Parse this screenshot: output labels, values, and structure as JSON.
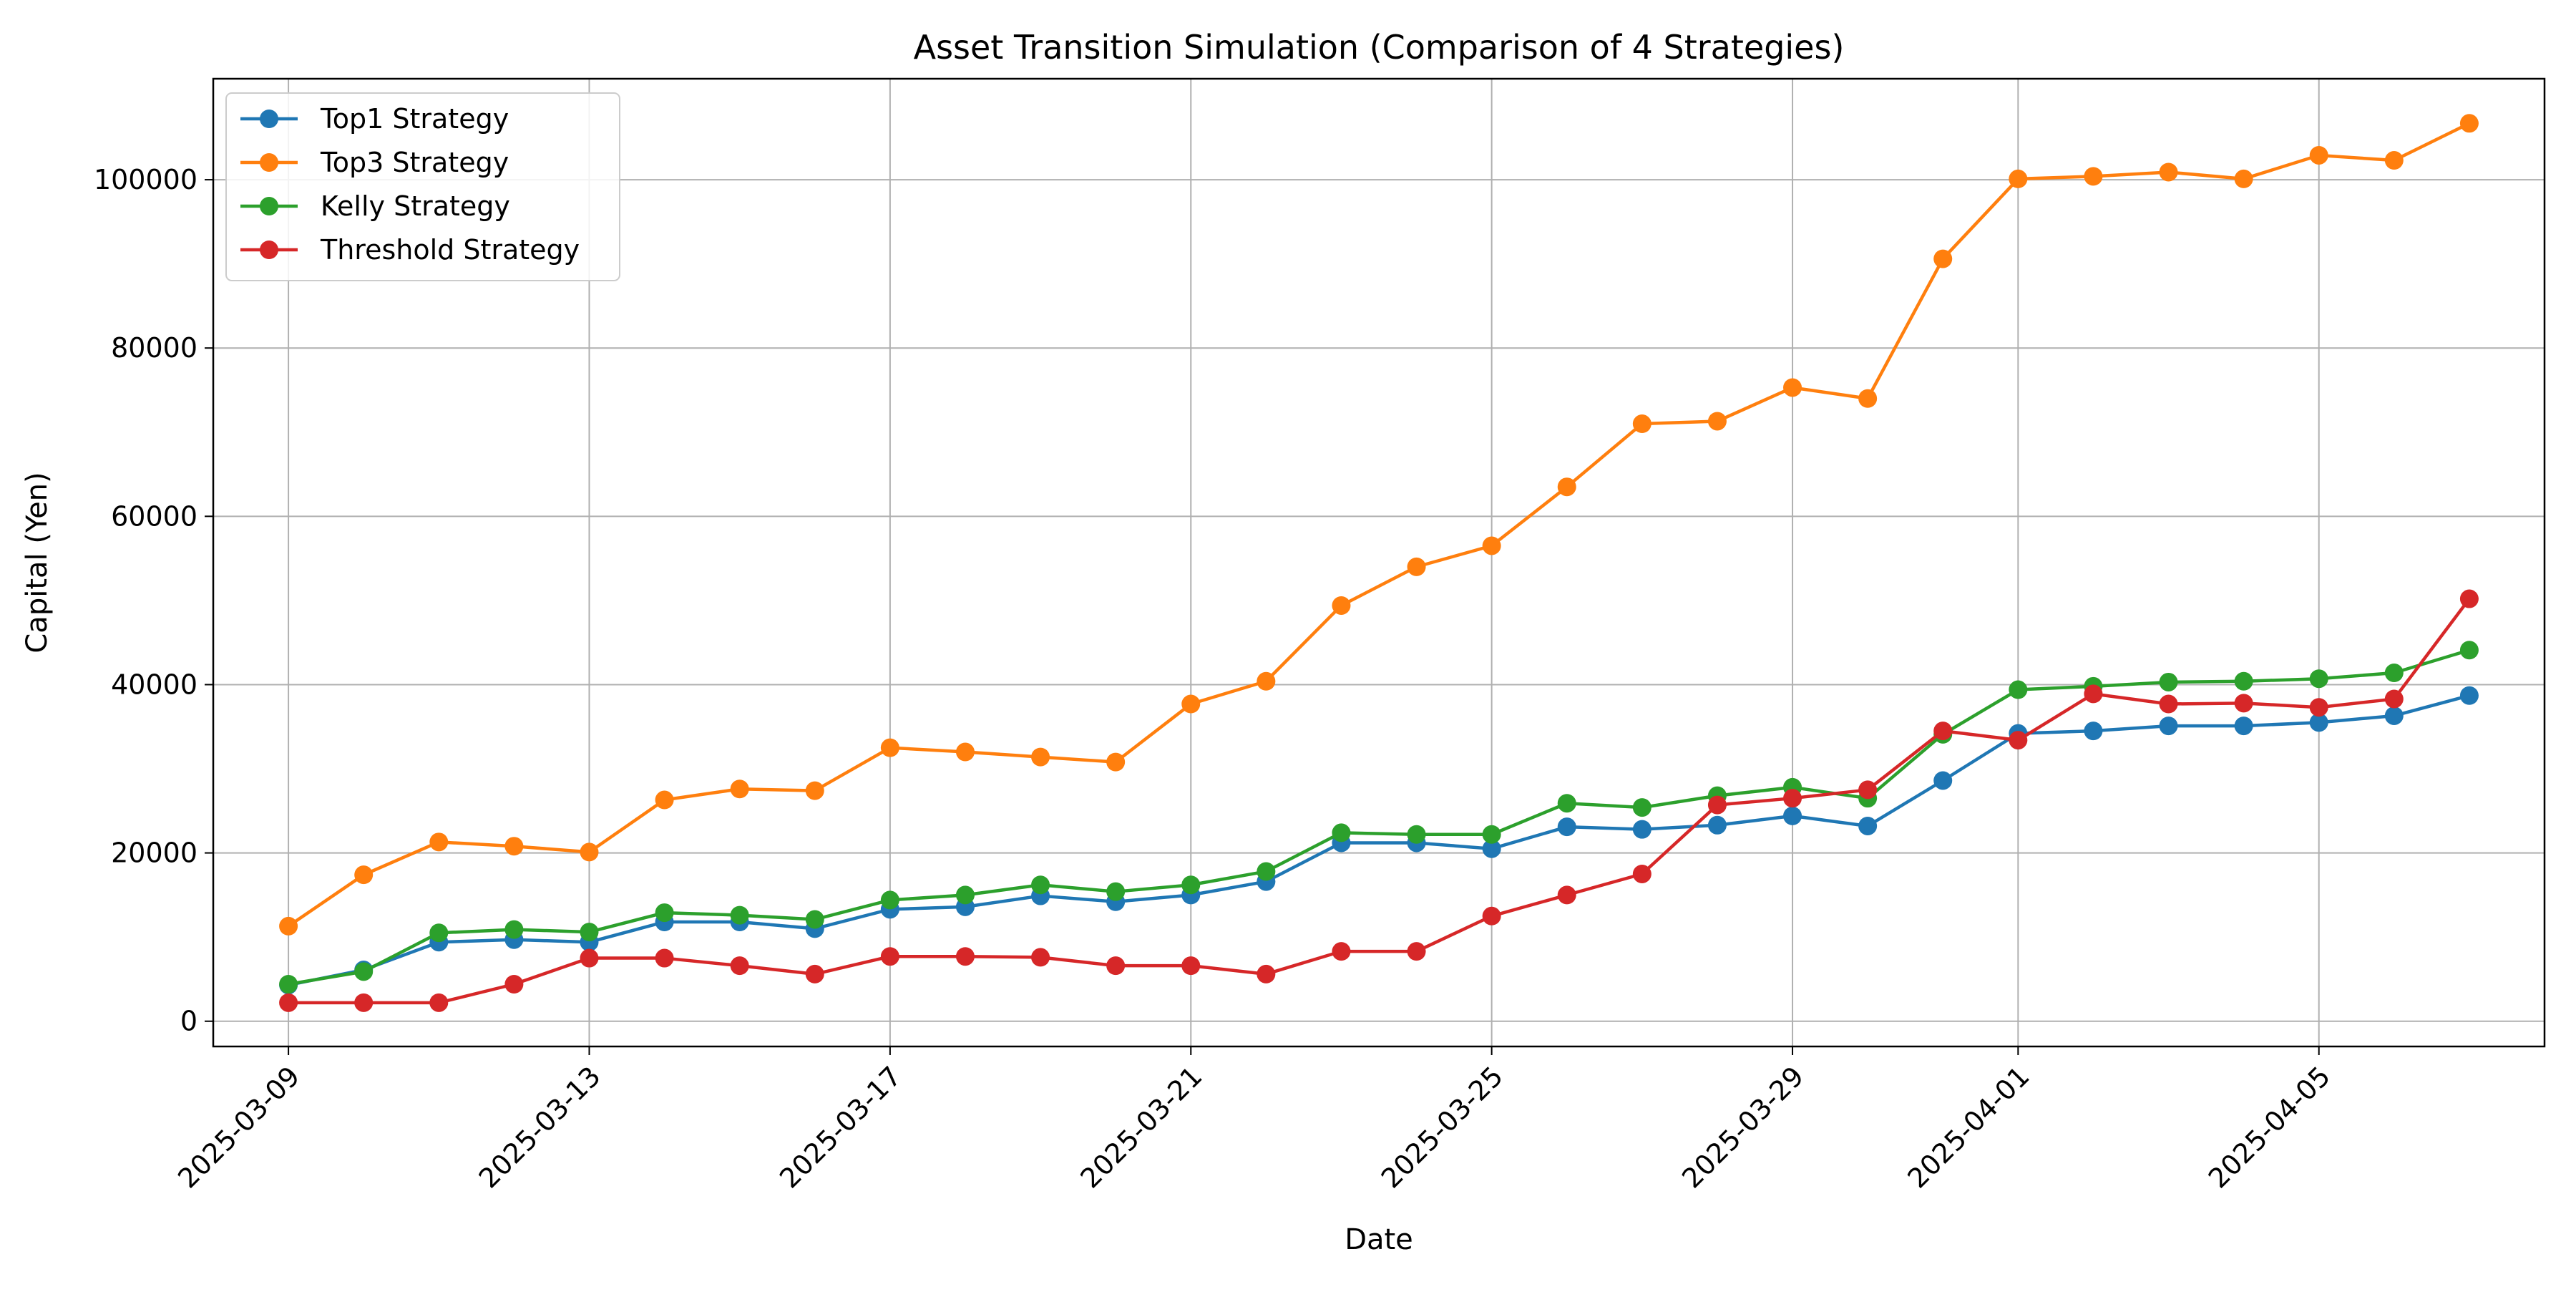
{
  "chart_data": {
    "type": "line",
    "title": "Asset Transition Simulation (Comparison of 4 Strategies)",
    "xlabel": "Date",
    "ylabel": "Capital (Yen)",
    "x_range": [
      "2025-03-08",
      "2025-04-08"
    ],
    "ylim": [
      -3000,
      112000
    ],
    "grid": true,
    "legend_position": "top-left",
    "x_ticks": [
      {
        "date": "2025-03-09",
        "label": "2025-03-09"
      },
      {
        "date": "2025-03-13",
        "label": "2025-03-13"
      },
      {
        "date": "2025-03-17",
        "label": "2025-03-17"
      },
      {
        "date": "2025-03-21",
        "label": "2025-03-21"
      },
      {
        "date": "2025-03-25",
        "label": "2025-03-25"
      },
      {
        "date": "2025-03-29",
        "label": "2025-03-29"
      },
      {
        "date": "2025-04-01",
        "label": "2025-04-01"
      },
      {
        "date": "2025-04-05",
        "label": "2025-04-05"
      }
    ],
    "y_ticks": [
      {
        "value": 0,
        "label": "0"
      },
      {
        "value": 20000,
        "label": "20000"
      },
      {
        "value": 40000,
        "label": "40000"
      },
      {
        "value": 60000,
        "label": "60000"
      },
      {
        "value": 80000,
        "label": "80000"
      },
      {
        "value": 100000,
        "label": "100000"
      }
    ],
    "x": [
      "2025-03-09",
      "2025-03-10",
      "2025-03-11",
      "2025-03-12",
      "2025-03-13",
      "2025-03-14",
      "2025-03-15",
      "2025-03-16",
      "2025-03-17",
      "2025-03-18",
      "2025-03-19",
      "2025-03-20",
      "2025-03-21",
      "2025-03-22",
      "2025-03-23",
      "2025-03-24",
      "2025-03-25",
      "2025-03-26",
      "2025-03-27",
      "2025-03-28",
      "2025-03-29",
      "2025-03-30",
      "2025-03-31",
      "2025-04-01",
      "2025-04-02",
      "2025-04-03",
      "2025-04-04",
      "2025-04-05",
      "2025-04-06",
      "2025-04-07"
    ],
    "series": [
      {
        "name": "Top1 Strategy",
        "color": "#1f77b4",
        "values": [
          4300,
          6100,
          9400,
          9700,
          9400,
          11800,
          11800,
          11000,
          13300,
          13600,
          14900,
          14200,
          15000,
          16600,
          21200,
          21200,
          20500,
          23100,
          22800,
          23300,
          24400,
          23200,
          28600,
          34200,
          34500,
          35100,
          35100,
          35500,
          36300,
          38700
        ]
      },
      {
        "name": "Top3 Strategy",
        "color": "#ff7f0e",
        "values": [
          11300,
          17400,
          21300,
          20800,
          20100,
          26300,
          27600,
          27400,
          32500,
          32000,
          31400,
          30800,
          37700,
          40400,
          49400,
          54000,
          56500,
          63500,
          71000,
          71300,
          75300,
          74000,
          90600,
          100100,
          100400,
          100900,
          100100,
          102900,
          102300,
          106700
        ]
      },
      {
        "name": "Kelly Strategy",
        "color": "#2ca02c",
        "values": [
          4400,
          5900,
          10500,
          10900,
          10600,
          12900,
          12600,
          12100,
          14400,
          15000,
          16200,
          15400,
          16200,
          17800,
          22400,
          22200,
          22200,
          25900,
          25400,
          26800,
          27800,
          26500,
          34100,
          39400,
          39800,
          40300,
          40400,
          40700,
          41400,
          44100
        ]
      },
      {
        "name": "Threshold Strategy",
        "color": "#d62728",
        "values": [
          2200,
          2200,
          2200,
          4400,
          7500,
          7500,
          6600,
          5600,
          7700,
          7700,
          7600,
          6600,
          6600,
          5600,
          8300,
          8300,
          12500,
          15000,
          17500,
          25700,
          26500,
          27500,
          34500,
          33400,
          38900,
          37700,
          37800,
          37300,
          38300,
          50200
        ]
      }
    ]
  }
}
